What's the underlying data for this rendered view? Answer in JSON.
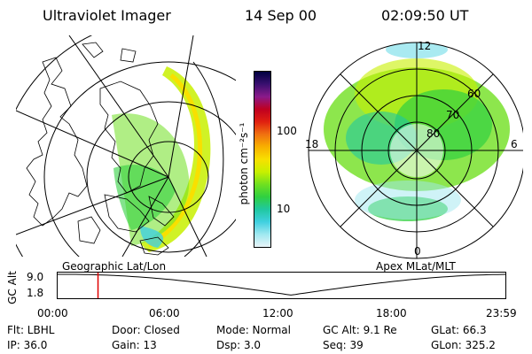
{
  "header": {
    "instrument": "Ultraviolet Imager",
    "date": "14 Sep 00",
    "time": "02:09:50 UT"
  },
  "colorbar": {
    "label": "photon cm⁻²s⁻¹",
    "ticks": [
      "100",
      "10"
    ],
    "colors": [
      "#000040",
      "#3a1070",
      "#8a1a8a",
      "#c00020",
      "#e02010",
      "#f07010",
      "#f8b000",
      "#f8e000",
      "#c8f000",
      "#70e020",
      "#30d040",
      "#20c8a0",
      "#40d0e0",
      "#a0e8f0",
      "#e8f4f8"
    ]
  },
  "left_map": {
    "caption": "Geographic Lat/Lon"
  },
  "right_map": {
    "caption": "Apex  MLat/MLT",
    "lat_labels": [
      "60",
      "70",
      "80"
    ],
    "mlt_labels": {
      "top": "12",
      "left": "18",
      "right": "6",
      "bottom": "0"
    }
  },
  "timeline": {
    "ylabel": "GC Alt",
    "ytick_top": "9.0",
    "ytick_bottom": "1.8",
    "xticks": [
      "00:00",
      "06:00",
      "12:00",
      "18:00",
      "23:59"
    ],
    "marker_hour": 2.16,
    "marker_color": "#e00000"
  },
  "info": {
    "flt": "Flt: LBHL",
    "door": "Door: Closed",
    "mode": "Mode: Normal",
    "gcalt": "GC Alt: 9.1 Re",
    "glat": "GLat:  66.3",
    "ip": "IP: 36.0",
    "gain": "Gain: 13",
    "dsp": "Dsp:     3.0",
    "seq": "Seq: 39",
    "glon": "GLon: 325.2"
  }
}
